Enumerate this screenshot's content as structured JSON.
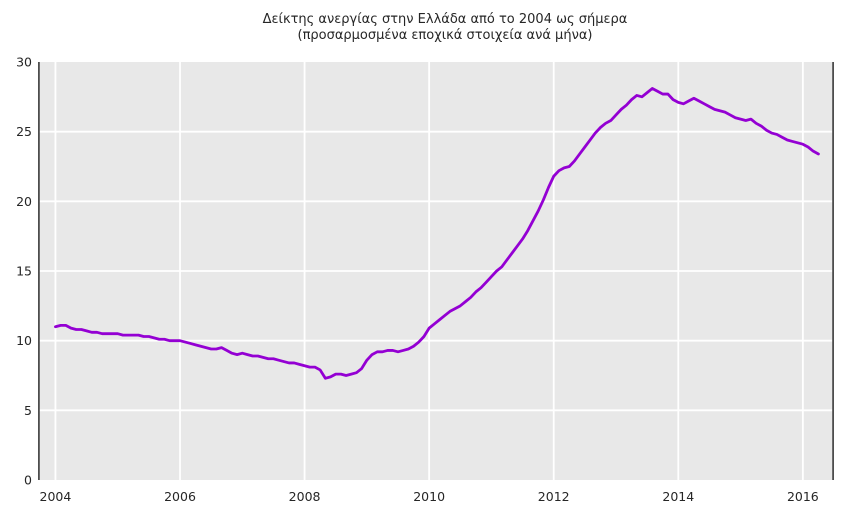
{
  "figure": {
    "title": "Δείκτης ανεργίας στην Ελλάδα από το 2004 ως σήμερα",
    "subtitle": "(προσαρμοσμένα εποχικά στοιχεία ανά μήνα)"
  },
  "chart_data": {
    "type": "line",
    "title": "Δείκτης ανεργίας στην Ελλάδα από το 2004 ως σήμερα",
    "subtitle": "(προσαρμοσμένα εποχικά στοιχεία ανά μήνα)",
    "xlabel": "",
    "ylabel": "",
    "legend": false,
    "grid": true,
    "xlim": [
      2003.72,
      2016.5
    ],
    "ylim": [
      0,
      30
    ],
    "x_ticks": [
      2004,
      2006,
      2008,
      2010,
      2012,
      2014,
      2016
    ],
    "x_tick_labels": [
      "2004",
      "2006",
      "2008",
      "2010",
      "2012",
      "2014",
      "2016"
    ],
    "y_ticks": [
      0,
      5,
      10,
      15,
      20,
      25,
      30
    ],
    "y_tick_labels": [
      "0",
      "5",
      "10",
      "15",
      "20",
      "25",
      "30"
    ],
    "plot_bg_color": "#e8e8e8",
    "gridline_color": "#ffffff",
    "spine_color": "#4d4d4d",
    "line_color": "#9400d3",
    "line_width": 2.8,
    "series": [
      {
        "name": "unemployment-rate-percent",
        "frequency": "monthly",
        "start_year": 2004,
        "start_month": 1,
        "values": [
          11.0,
          11.1,
          11.1,
          10.9,
          10.8,
          10.8,
          10.7,
          10.6,
          10.6,
          10.5,
          10.5,
          10.5,
          10.5,
          10.4,
          10.4,
          10.4,
          10.4,
          10.3,
          10.3,
          10.2,
          10.1,
          10.1,
          10.0,
          10.0,
          10.0,
          9.9,
          9.8,
          9.7,
          9.6,
          9.5,
          9.4,
          9.4,
          9.5,
          9.3,
          9.1,
          9.0,
          9.1,
          9.0,
          8.9,
          8.9,
          8.8,
          8.7,
          8.7,
          8.6,
          8.5,
          8.4,
          8.4,
          8.3,
          8.2,
          8.1,
          8.1,
          7.9,
          7.3,
          7.4,
          7.6,
          7.6,
          7.5,
          7.6,
          7.7,
          8.0,
          8.6,
          9.0,
          9.2,
          9.2,
          9.3,
          9.3,
          9.2,
          9.3,
          9.4,
          9.6,
          9.9,
          10.3,
          10.9,
          11.2,
          11.5,
          11.8,
          12.1,
          12.3,
          12.5,
          12.8,
          13.1,
          13.5,
          13.8,
          14.2,
          14.6,
          15.0,
          15.3,
          15.8,
          16.3,
          16.8,
          17.3,
          17.9,
          18.6,
          19.3,
          20.1,
          21.0,
          21.8,
          22.2,
          22.4,
          22.5,
          22.9,
          23.4,
          23.9,
          24.4,
          24.9,
          25.3,
          25.6,
          25.8,
          26.2,
          26.6,
          26.9,
          27.3,
          27.6,
          27.5,
          27.8,
          28.1,
          27.9,
          27.7,
          27.7,
          27.3,
          27.1,
          27.0,
          27.2,
          27.4,
          27.2,
          27.0,
          26.8,
          26.6,
          26.5,
          26.4,
          26.2,
          26.0,
          25.9,
          25.8,
          25.9,
          25.6,
          25.4,
          25.1,
          24.9,
          24.8,
          24.6,
          24.4,
          24.3,
          24.2,
          24.1,
          23.9,
          23.6,
          23.4
        ]
      }
    ]
  }
}
